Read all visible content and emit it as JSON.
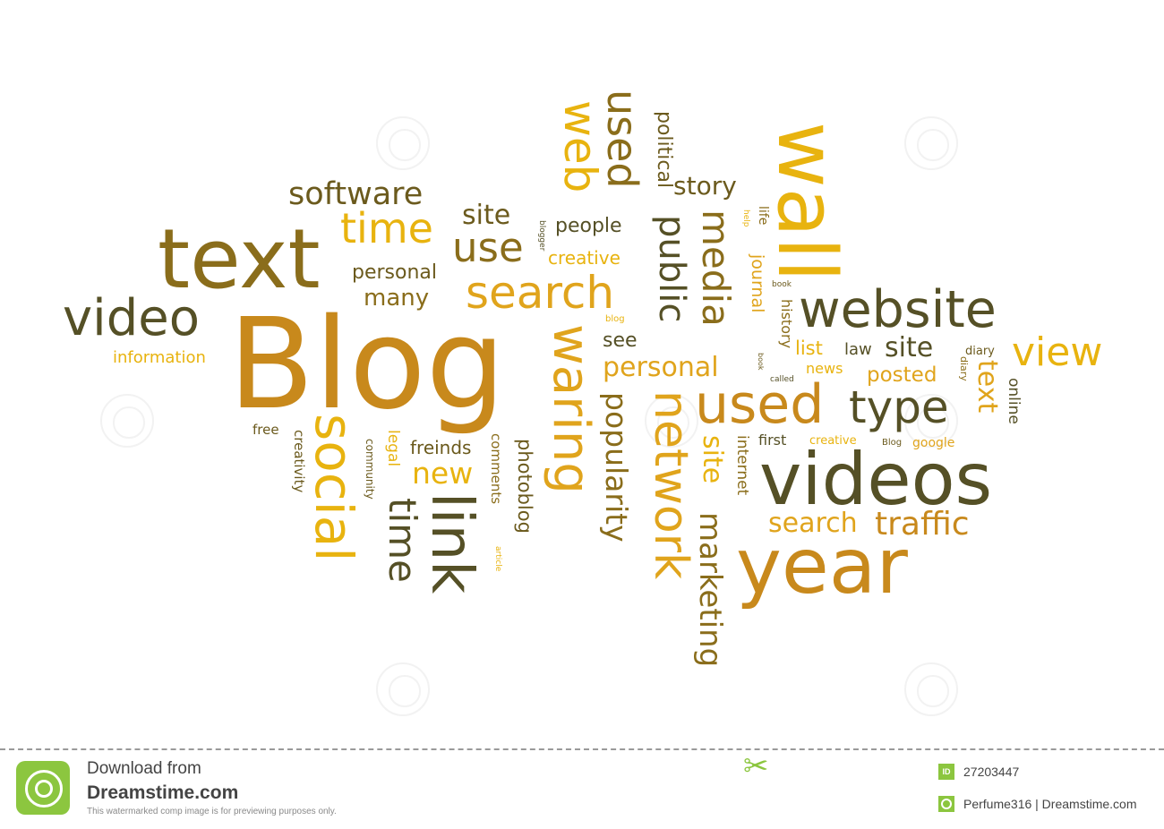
{
  "cloud": [
    {
      "text": "Blog",
      "color": "#c8891c"
    },
    {
      "text": "text",
      "color": "#8a6d1b"
    },
    {
      "text": "video",
      "color": "#555026"
    },
    {
      "text": "software",
      "color": "#6b5a1d"
    },
    {
      "text": "time",
      "color": "#e8b30f"
    },
    {
      "text": "site",
      "color": "#6b5a1d"
    },
    {
      "text": "use",
      "color": "#8a6d1b"
    },
    {
      "text": "personal",
      "color": "#6b5a1d"
    },
    {
      "text": "many",
      "color": "#8a6d1b"
    },
    {
      "text": "information",
      "color": "#e8b30f"
    },
    {
      "text": "search",
      "color": "#e0a41c"
    },
    {
      "text": "people",
      "color": "#555026"
    },
    {
      "text": "creative",
      "color": "#e8b30f"
    },
    {
      "text": "blogger",
      "color": "#555026"
    },
    {
      "text": "web",
      "color": "#e8b30f"
    },
    {
      "text": "used",
      "color": "#8a6d1b"
    },
    {
      "text": "political",
      "color": "#6b5a1d"
    },
    {
      "text": "story",
      "color": "#6b5a1d"
    },
    {
      "text": "wall",
      "color": "#e8b30f"
    },
    {
      "text": "public",
      "color": "#555026"
    },
    {
      "text": "media",
      "color": "#8a6d1b"
    },
    {
      "text": "life",
      "color": "#8a6d1b"
    },
    {
      "text": "help",
      "color": "#e8b30f"
    },
    {
      "text": "journal",
      "color": "#e0a41c"
    },
    {
      "text": "book",
      "color": "#6b5a1d"
    },
    {
      "text": "blog",
      "color": "#e8b30f"
    },
    {
      "text": "history",
      "color": "#8a6d1b"
    },
    {
      "text": "website",
      "color": "#555026"
    },
    {
      "text": "list",
      "color": "#e8b30f"
    },
    {
      "text": "law",
      "color": "#555026"
    },
    {
      "text": "site",
      "color": "#555026"
    },
    {
      "text": "diary",
      "color": "#6b5a1d"
    },
    {
      "text": "view",
      "color": "#e8b30f"
    },
    {
      "text": "see",
      "color": "#555026"
    },
    {
      "text": "waring",
      "color": "#e0a41c"
    },
    {
      "text": "personal",
      "color": "#e0a41c"
    },
    {
      "text": "book",
      "color": "#6b5a1d"
    },
    {
      "text": "called",
      "color": "#555026"
    },
    {
      "text": "news",
      "color": "#e8b30f"
    },
    {
      "text": "posted",
      "color": "#e0a41c"
    },
    {
      "text": "diary",
      "color": "#8a6d1b"
    },
    {
      "text": "text",
      "color": "#e0a41c"
    },
    {
      "text": "online",
      "color": "#555026"
    },
    {
      "text": "used",
      "color": "#c8891c"
    },
    {
      "text": "type",
      "color": "#555026"
    },
    {
      "text": "network",
      "color": "#e0a41c"
    },
    {
      "text": "popularity",
      "color": "#8a6d1b"
    },
    {
      "text": "free",
      "color": "#6b5a1d"
    },
    {
      "text": "creativity",
      "color": "#6b5a1d"
    },
    {
      "text": "social",
      "color": "#e8b30f"
    },
    {
      "text": "community",
      "color": "#6b5a1d"
    },
    {
      "text": "legal",
      "color": "#e8b30f"
    },
    {
      "text": "freinds",
      "color": "#6b5a1d"
    },
    {
      "text": "new",
      "color": "#e8b30f"
    },
    {
      "text": "time",
      "color": "#555026"
    },
    {
      "text": "link",
      "color": "#555026"
    },
    {
      "text": "comments",
      "color": "#8a6d1b"
    },
    {
      "text": "article",
      "color": "#e8b30f"
    },
    {
      "text": "photoblog",
      "color": "#6b5a1d"
    },
    {
      "text": "site",
      "color": "#e8b30f"
    },
    {
      "text": "marketing",
      "color": "#8a6d1b"
    },
    {
      "text": "internet",
      "color": "#8a6d1b"
    },
    {
      "text": "first",
      "color": "#555026"
    },
    {
      "text": "creative",
      "color": "#e8b30f"
    },
    {
      "text": "Blog",
      "color": "#6b5a1d"
    },
    {
      "text": "google",
      "color": "#e0a41c"
    },
    {
      "text": "videos",
      "color": "#555026"
    },
    {
      "text": "search",
      "color": "#e0a41c"
    },
    {
      "text": "traffic",
      "color": "#c8891c"
    },
    {
      "text": "year",
      "color": "#c8891c"
    }
  ],
  "footer": {
    "download_from": "Download from",
    "site_name": "Dreamstime.com",
    "notice": "This watermarked comp image is for previewing purposes only.",
    "id_badge": "ID",
    "image_id": "27203447",
    "credit": "Perfume316 | Dreamstime.com"
  }
}
